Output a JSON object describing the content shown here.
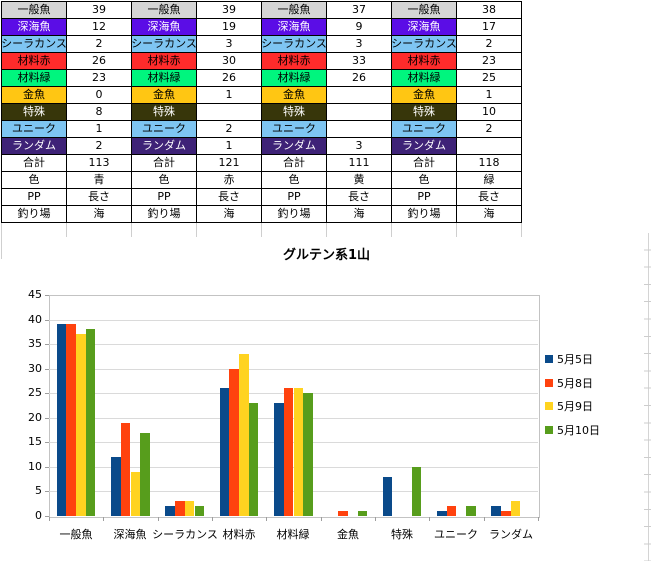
{
  "row_defs": [
    {
      "label": "一般魚",
      "bg": "#D5D5D5",
      "fg": "#000000"
    },
    {
      "label": "深海魚",
      "bg": "#5B0DE6",
      "fg": "#FFFFFF"
    },
    {
      "label": "シーラカンス",
      "bg": "#7EC5F2",
      "fg": "#000000"
    },
    {
      "label": "材料赤",
      "bg": "#FF2B2B",
      "fg": "#000000"
    },
    {
      "label": "材料緑",
      "bg": "#00F57E",
      "fg": "#000000"
    },
    {
      "label": "金魚",
      "bg": "#FFC613",
      "fg": "#000000"
    },
    {
      "label": "特殊",
      "bg": "#37360A",
      "fg": "#FFFFFF"
    },
    {
      "label": "ユニーク",
      "bg": "#7EC5F2",
      "fg": "#000000"
    },
    {
      "label": "ランダム",
      "bg": "#3E2277",
      "fg": "#FFFFFF"
    },
    {
      "label": "合計",
      "bg": "#FFFFFF",
      "fg": "#000000"
    },
    {
      "label": "色",
      "bg": "#FFFFFF",
      "fg": "#000000"
    },
    {
      "label": "PP",
      "bg": "#FFFFFF",
      "fg": "#000000"
    },
    {
      "label": "釣り場",
      "bg": "#FFFFFF",
      "fg": "#000000"
    }
  ],
  "tables": [
    {
      "values": [
        "39",
        "12",
        "2",
        "26",
        "23",
        "0",
        "8",
        "1",
        "2",
        "113",
        "青",
        "長さ",
        "海"
      ]
    },
    {
      "values": [
        "39",
        "19",
        "3",
        "30",
        "26",
        "1",
        "",
        "2",
        "1",
        "121",
        "赤",
        "長さ",
        "海"
      ]
    },
    {
      "values": [
        "37",
        "9",
        "3",
        "33",
        "26",
        "",
        "",
        "",
        "3",
        "111",
        "黄",
        "長さ",
        "海"
      ]
    },
    {
      "values": [
        "38",
        "17",
        "2",
        "23",
        "25",
        "1",
        "10",
        "2",
        "",
        "118",
        "緑",
        "長さ",
        "海"
      ]
    }
  ],
  "chart_data": {
    "type": "bar",
    "title": "グルテン系1山",
    "categories": [
      "一般魚",
      "深海魚",
      "シーラカンス",
      "材料赤",
      "材料緑",
      "金魚",
      "特殊",
      "ユニーク",
      "ランダム"
    ],
    "series": [
      {
        "name": "5月5日",
        "color": "#0A4A8A",
        "values": [
          39,
          12,
          2,
          26,
          23,
          0,
          8,
          1,
          2
        ]
      },
      {
        "name": "5月8日",
        "color": "#FF420E",
        "values": [
          39,
          19,
          3,
          30,
          26,
          1,
          null,
          2,
          1
        ]
      },
      {
        "name": "5月9日",
        "color": "#FFD320",
        "values": [
          37,
          9,
          3,
          33,
          26,
          null,
          null,
          null,
          3
        ]
      },
      {
        "name": "5月10日",
        "color": "#579D1C",
        "values": [
          38,
          17,
          2,
          23,
          25,
          1,
          10,
          2,
          null
        ]
      }
    ],
    "xlabel": "",
    "ylabel": "",
    "ylim": [
      0,
      45
    ],
    "ytick_step": 5,
    "grid": true,
    "legend_position": "right"
  }
}
